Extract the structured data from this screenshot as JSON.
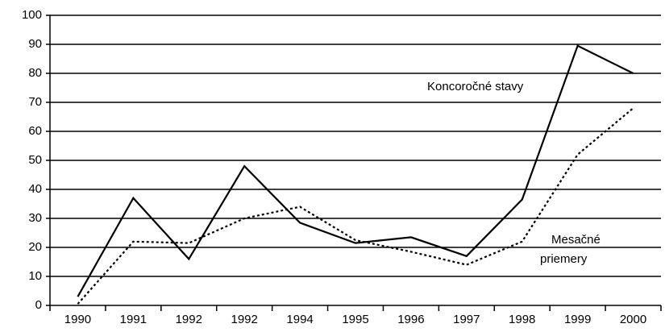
{
  "chart_data": {
    "type": "line",
    "categories": [
      "1990",
      "1991",
      "1992",
      "1992",
      "1994",
      "1995",
      "1996",
      "1997",
      "1998",
      "1999",
      "2000"
    ],
    "series": [
      {
        "label": [
          "Koncoročné stavy"
        ],
        "color": "#000000",
        "dash": "none",
        "values": [
          3,
          37,
          16,
          48,
          28.5,
          21.5,
          23.5,
          17,
          36.5,
          89.5,
          80
        ]
      },
      {
        "label": [
          "Mesačné",
          "priemery"
        ],
        "color": "#000000",
        "dash": "3,3",
        "values": [
          0.5,
          22,
          21.5,
          30,
          34,
          22.5,
          18.5,
          14,
          22,
          52,
          68
        ]
      }
    ],
    "ylim": [
      0,
      100
    ],
    "yticks": [
      0,
      10,
      20,
      30,
      40,
      50,
      60,
      70,
      80,
      90,
      100
    ],
    "grid": true
  }
}
